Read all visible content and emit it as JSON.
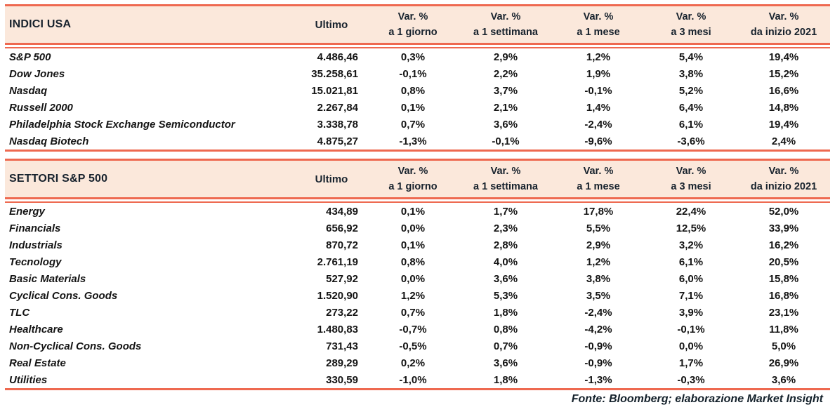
{
  "colors": {
    "accent": "#ee6950",
    "header_background": "#fbe8db",
    "header_text": "#17222d",
    "body_text": "#141414"
  },
  "columns": {
    "value_label": "Ultimo",
    "var_label": "Var. %",
    "periods": [
      "a 1 giorno",
      "a 1 settimana",
      "a 1 mese",
      "a 3 mesi",
      "da inizio 2021"
    ]
  },
  "tables": [
    {
      "title": "INDICI USA",
      "rows": [
        {
          "name": "S&P 500",
          "ultimo": "4.486,46",
          "vars": [
            "0,3%",
            "2,9%",
            "1,2%",
            "5,4%",
            "19,4%"
          ]
        },
        {
          "name": "Dow Jones",
          "ultimo": "35.258,61",
          "vars": [
            "-0,1%",
            "2,2%",
            "1,9%",
            "3,8%",
            "15,2%"
          ]
        },
        {
          "name": "Nasdaq",
          "ultimo": "15.021,81",
          "vars": [
            "0,8%",
            "3,7%",
            "-0,1%",
            "5,2%",
            "16,6%"
          ]
        },
        {
          "name": "Russell 2000",
          "ultimo": "2.267,84",
          "vars": [
            "0,1%",
            "2,1%",
            "1,4%",
            "6,4%",
            "14,8%"
          ]
        },
        {
          "name": "Philadelphia Stock Exchange Semiconductor",
          "ultimo": "3.338,78",
          "vars": [
            "0,7%",
            "3,6%",
            "-2,4%",
            "6,1%",
            "19,4%"
          ]
        },
        {
          "name": "Nasdaq Biotech",
          "ultimo": "4.875,27",
          "vars": [
            "-1,3%",
            "-0,1%",
            "-9,6%",
            "-3,6%",
            "2,4%"
          ]
        }
      ]
    },
    {
      "title": "SETTORI S&P 500",
      "rows": [
        {
          "name": "Energy",
          "ultimo": "434,89",
          "vars": [
            "0,1%",
            "1,7%",
            "17,8%",
            "22,4%",
            "52,0%"
          ]
        },
        {
          "name": "Financials",
          "ultimo": "656,92",
          "vars": [
            "0,0%",
            "2,3%",
            "5,5%",
            "12,5%",
            "33,9%"
          ]
        },
        {
          "name": "Industrials",
          "ultimo": "870,72",
          "vars": [
            "0,1%",
            "2,8%",
            "2,9%",
            "3,2%",
            "16,2%"
          ]
        },
        {
          "name": "Tecnology",
          "ultimo": "2.761,19",
          "vars": [
            "0,8%",
            "4,0%",
            "1,2%",
            "6,1%",
            "20,5%"
          ]
        },
        {
          "name": "Basic Materials",
          "ultimo": "527,92",
          "vars": [
            "0,0%",
            "3,6%",
            "3,8%",
            "6,0%",
            "15,8%"
          ]
        },
        {
          "name": "Cyclical Cons. Goods",
          "ultimo": "1.520,90",
          "vars": [
            "1,2%",
            "5,3%",
            "3,5%",
            "7,1%",
            "16,8%"
          ]
        },
        {
          "name": "TLC",
          "ultimo": "273,22",
          "vars": [
            "0,7%",
            "1,8%",
            "-2,4%",
            "3,9%",
            "23,1%"
          ]
        },
        {
          "name": "Healthcare",
          "ultimo": "1.480,83",
          "vars": [
            "-0,7%",
            "0,8%",
            "-4,2%",
            "-0,1%",
            "11,8%"
          ]
        },
        {
          "name": "Non-Cyclical Cons. Goods",
          "ultimo": "731,43",
          "vars": [
            "-0,5%",
            "0,7%",
            "-0,9%",
            "0,0%",
            "5,0%"
          ]
        },
        {
          "name": "Real Estate",
          "ultimo": "289,29",
          "vars": [
            "0,2%",
            "3,6%",
            "-0,9%",
            "1,7%",
            "26,9%"
          ]
        },
        {
          "name": "Utilities",
          "ultimo": "330,59",
          "vars": [
            "-1,0%",
            "1,8%",
            "-1,3%",
            "-0,3%",
            "3,6%"
          ]
        }
      ]
    }
  ],
  "footer": {
    "source": "Fonte: Bloomberg; elaborazione Market Insight"
  }
}
